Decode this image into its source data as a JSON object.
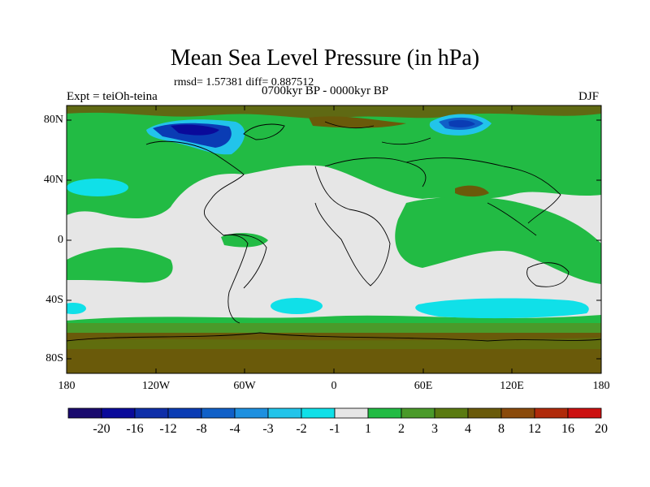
{
  "title": "Mean Sea Level Pressure (in hPa)",
  "stats": "rmsd= 1.57381 diff= 0.887512",
  "period": "0700kyr BP - 0000kyr BP",
  "experiment": "Expt = teiOh-teina",
  "season": "DJF",
  "lat_ticks": [
    "80N",
    "40N",
    "0",
    "40S",
    "80S"
  ],
  "lon_ticks": [
    "180",
    "120W",
    "60W",
    "0",
    "60E",
    "120E",
    "180"
  ],
  "colorbar": {
    "labels": [
      "-20",
      "-16",
      "-12",
      "-8",
      "-4",
      "-3",
      "-2",
      "-1",
      "1",
      "2",
      "3",
      "4",
      "8",
      "12",
      "16",
      "20"
    ],
    "colors": [
      "#1a0a6e",
      "#0a0a9a",
      "#0e2ea8",
      "#0a3cb4",
      "#1060c8",
      "#1e90e0",
      "#22c4ea",
      "#10e0e8",
      "#e6e6e6",
      "#22bb44",
      "#4a9a2a",
      "#5a7a10",
      "#6a5a0a",
      "#8a4a0a",
      "#b02a0a",
      "#cc1010"
    ]
  }
}
